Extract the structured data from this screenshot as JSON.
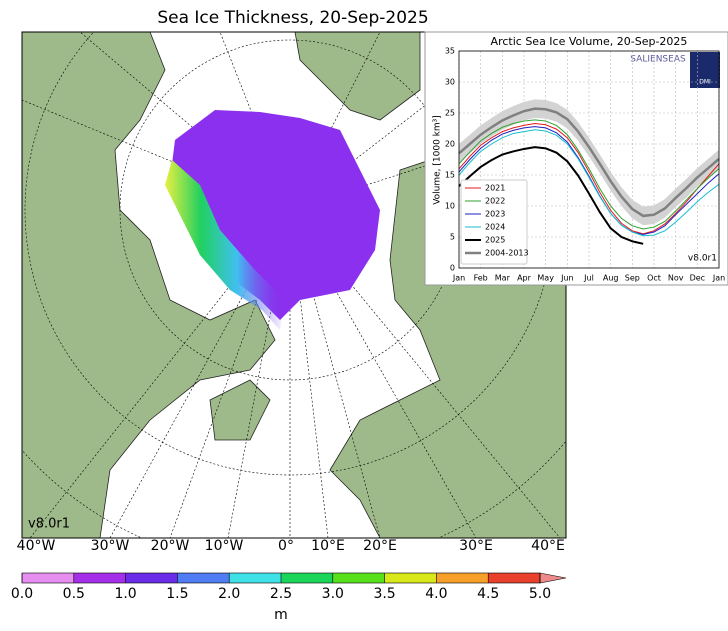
{
  "map": {
    "title": "Sea Ice Thickness, 20-Sep-2025",
    "version": "v8.0r1",
    "longitude_labels": [
      "40°W",
      "30°W",
      "20°W",
      "10°W",
      "0°",
      "10°E",
      "20°E",
      "30°E",
      "40°E"
    ]
  },
  "colorbar": {
    "label": "m",
    "ticks": [
      {
        "value": 0,
        "label": "0.0"
      },
      {
        "value": 0.5,
        "label": "0.5"
      },
      {
        "value": 1,
        "label": "1.0"
      },
      {
        "value": 1.5,
        "label": "1.5"
      },
      {
        "value": 2,
        "label": "2.0"
      },
      {
        "value": 2.5,
        "label": "2.5"
      },
      {
        "value": 3,
        "label": "3.0"
      },
      {
        "value": 3.5,
        "label": "3.5"
      },
      {
        "value": 4,
        "label": "4.0"
      },
      {
        "value": 4.5,
        "label": "4.5"
      },
      {
        "value": 5,
        "label": "5.0"
      }
    ],
    "colors": [
      "#e58ef0",
      "#a52ee8",
      "#6a2be8",
      "#4f7cf2",
      "#3fe0e6",
      "#19d65a",
      "#58e01a",
      "#d8e81a",
      "#f6a02a",
      "#e8402a",
      "#ef8a8a"
    ]
  },
  "chart_data": {
    "type": "line",
    "title": "Arctic Sea Ice Volume, 20-Sep-2025",
    "y_label": "Volume, [1000 km³]",
    "version": "v8.0r1",
    "logo": "SALIENSEAS",
    "logo_badge": "DMI",
    "x": [
      0,
      0.5,
      1,
      1.5,
      2,
      2.5,
      3,
      3.5,
      4,
      4.5,
      5,
      5.5,
      6,
      6.5,
      7,
      7.5,
      8,
      8.5,
      9,
      9.5,
      10,
      10.5,
      11,
      11.5,
      12
    ],
    "xlim": [
      0,
      12
    ],
    "xticks": [
      {
        "value": 0,
        "label": "Jan"
      },
      {
        "value": 1,
        "label": "Feb"
      },
      {
        "value": 2,
        "label": "Mar"
      },
      {
        "value": 3,
        "label": "Apr"
      },
      {
        "value": 4,
        "label": "May"
      },
      {
        "value": 5,
        "label": "Jun"
      },
      {
        "value": 6,
        "label": "Jul"
      },
      {
        "value": 7,
        "label": "Aug"
      },
      {
        "value": 8,
        "label": "Sep"
      },
      {
        "value": 9,
        "label": "Oct"
      },
      {
        "value": 10,
        "label": "Nov"
      },
      {
        "value": 11,
        "label": "Dec"
      },
      {
        "value": 12,
        "label": "Jan"
      }
    ],
    "ylim": [
      0,
      35
    ],
    "yticks": [
      0,
      5,
      10,
      15,
      20,
      25,
      30,
      35
    ],
    "grid": true,
    "legend": "lower-left",
    "band": {
      "color": "#d3d3d3",
      "lower": [
        17.0,
        18.5,
        20.0,
        21.2,
        22.3,
        23.1,
        23.8,
        24.2,
        24.1,
        23.6,
        22.5,
        20.5,
        18.0,
        15.3,
        12.5,
        10.0,
        8.0,
        6.9,
        7.1,
        8.1,
        9.8,
        11.4,
        13.1,
        14.6,
        16.1
      ],
      "upper": [
        20.0,
        21.5,
        23.0,
        24.2,
        25.3,
        26.1,
        26.8,
        27.2,
        27.1,
        26.6,
        25.5,
        23.5,
        21.0,
        18.3,
        15.5,
        13.0,
        11.0,
        9.9,
        10.1,
        11.1,
        12.8,
        14.4,
        16.1,
        17.6,
        19.1
      ]
    },
    "series": [
      {
        "name": "2021",
        "color": "#e41a1c",
        "width": 1,
        "values": [
          16.0,
          18.0,
          19.8,
          21.0,
          22.0,
          22.6,
          23.0,
          23.3,
          23.1,
          22.4,
          21.0,
          18.6,
          15.5,
          12.2,
          9.3,
          7.2,
          6.0,
          5.5,
          6.0,
          7.1,
          8.8,
          10.7,
          12.8,
          14.8,
          16.8
        ]
      },
      {
        "name": "2022",
        "color": "#2ca02c",
        "width": 1,
        "values": [
          16.8,
          18.7,
          20.5,
          21.7,
          22.7,
          23.3,
          23.7,
          23.9,
          23.7,
          23.0,
          21.5,
          19.0,
          16.0,
          12.8,
          10.0,
          8.0,
          6.8,
          6.3,
          6.6,
          7.5,
          9.2,
          11.0,
          12.8,
          14.5,
          16.0
        ]
      },
      {
        "name": "2023",
        "color": "#1f1fbf",
        "width": 1,
        "values": [
          15.5,
          17.5,
          19.3,
          20.6,
          21.6,
          22.2,
          22.6,
          22.8,
          22.6,
          21.8,
          20.3,
          17.8,
          14.8,
          11.6,
          8.8,
          6.9,
          5.8,
          5.4,
          5.8,
          6.8,
          8.6,
          10.3,
          12.0,
          13.7,
          15.2
        ]
      },
      {
        "name": "2024",
        "color": "#17becf",
        "width": 1,
        "values": [
          15.0,
          17.0,
          18.8,
          20.0,
          21.0,
          21.7,
          22.0,
          22.3,
          22.1,
          21.4,
          20.0,
          17.6,
          14.6,
          11.5,
          8.8,
          6.9,
          5.8,
          5.2,
          5.3,
          6.0,
          7.4,
          9.0,
          10.7,
          12.2,
          13.5
        ]
      },
      {
        "name": "2025",
        "color": "#000000",
        "width": 2,
        "values": [
          13.2,
          14.8,
          16.3,
          17.4,
          18.3,
          18.8,
          19.2,
          19.5,
          19.3,
          18.6,
          17.2,
          14.9,
          12.0,
          9.0,
          6.4,
          5.0,
          4.3,
          3.9,
          null,
          null,
          null,
          null,
          null,
          null,
          null
        ]
      },
      {
        "name": "2004-2013",
        "color": "#808080",
        "width": 2.5,
        "values": [
          18.5,
          20.0,
          21.5,
          22.7,
          23.8,
          24.6,
          25.3,
          25.7,
          25.6,
          25.1,
          24.0,
          22.0,
          19.5,
          16.8,
          14.0,
          11.5,
          9.5,
          8.4,
          8.6,
          9.6,
          11.3,
          12.9,
          14.6,
          16.1,
          17.6
        ]
      }
    ]
  }
}
